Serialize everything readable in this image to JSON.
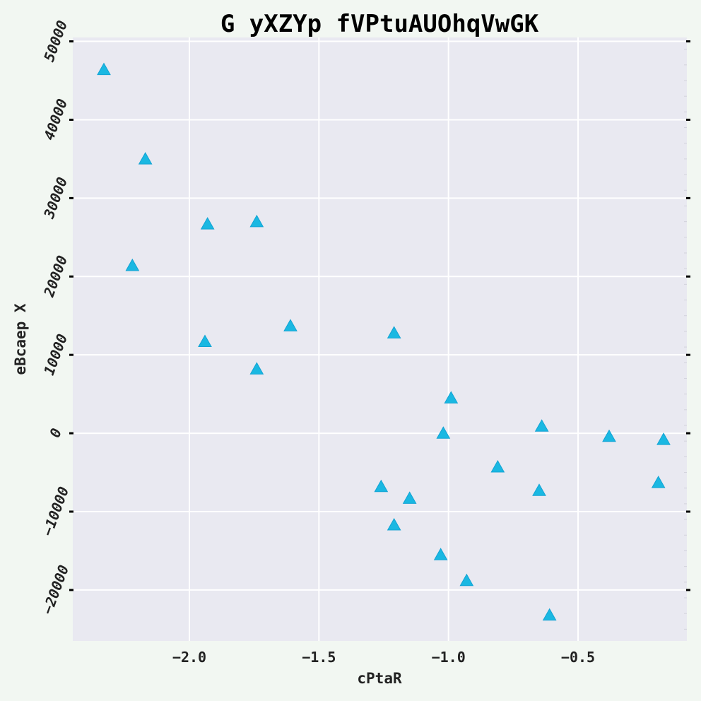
{
  "chart_data": {
    "type": "scatter",
    "title": "G yXZYp fVPtuAUOhqVwGK",
    "xlabel": "cPtaR",
    "ylabel": "eBcaep X",
    "xlim": [
      -2.45,
      -0.08
    ],
    "ylim": [
      -26500,
      50500
    ],
    "xticks": [
      -2.0,
      -1.5,
      -1.0,
      -0.5
    ],
    "xtick_labels": [
      "−2.0",
      "−1.5",
      "−1.0",
      "−0.5"
    ],
    "yticks": [
      -20000,
      -10000,
      0,
      10000,
      20000,
      30000,
      40000,
      50000
    ],
    "ytick_labels": [
      "−20000",
      "−10000",
      "0",
      "10000",
      "20000",
      "30000",
      "40000",
      "50000"
    ],
    "grid": true,
    "marker": "triangle-up",
    "series": [
      {
        "x": [
          -2.33,
          -2.17,
          -2.22,
          -1.93,
          -1.74,
          -1.94,
          -1.74,
          -1.61,
          -1.21,
          -0.99,
          -1.02,
          -0.64,
          -0.38,
          -0.17,
          -0.81,
          -0.65,
          -1.26,
          -1.15,
          -1.21,
          -1.03,
          -0.93,
          -0.61,
          -0.19
        ],
        "y": [
          46400,
          35000,
          21400,
          26700,
          27000,
          11700,
          8200,
          13700,
          12800,
          4500,
          0,
          900,
          -400,
          -800,
          -4300,
          -7300,
          -6800,
          -8300,
          -11700,
          -15500,
          -18800,
          -23200,
          -6300
        ]
      }
    ],
    "colors": {
      "marker": "#1ab8e2",
      "plot_bg": "#e9e9f1",
      "page_bg": "#f2f7f2",
      "grid": "#ffffff"
    }
  }
}
